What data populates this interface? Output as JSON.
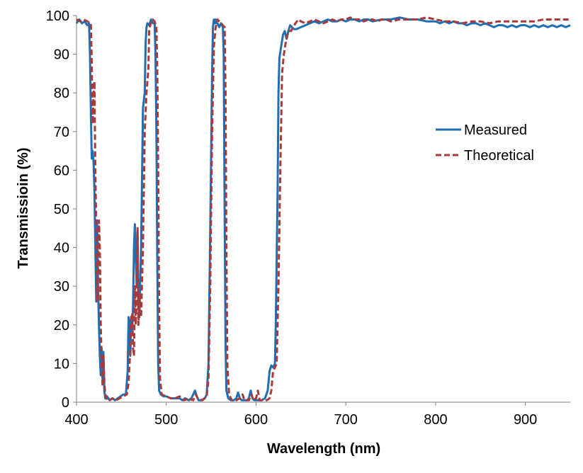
{
  "chart_data": {
    "type": "line",
    "title": "",
    "xlabel": "Wavelength (nm)",
    "ylabel": "Transmissioin (%)",
    "xlim": [
      400,
      950
    ],
    "ylim": [
      0,
      100
    ],
    "x_ticks": [
      400,
      500,
      600,
      700,
      800,
      900
    ],
    "y_ticks": [
      0,
      10,
      20,
      30,
      40,
      50,
      60,
      70,
      80,
      90,
      100
    ],
    "grid": false,
    "legend_position": "right",
    "series": [
      {
        "name": "Measured",
        "color": "#1f6fb5",
        "style": "solid",
        "points": [
          [
            400,
            98
          ],
          [
            403,
            99
          ],
          [
            406,
            98
          ],
          [
            409,
            98.5
          ],
          [
            412,
            97.5
          ],
          [
            414,
            98
          ],
          [
            415,
            90
          ],
          [
            416,
            75
          ],
          [
            417,
            63
          ],
          [
            418,
            65
          ],
          [
            419,
            62
          ],
          [
            420,
            55
          ],
          [
            421,
            40
          ],
          [
            422,
            26
          ],
          [
            423,
            47
          ],
          [
            424,
            30
          ],
          [
            425,
            20
          ],
          [
            426,
            12
          ],
          [
            427,
            7
          ],
          [
            428,
            14
          ],
          [
            429,
            6
          ],
          [
            430,
            13
          ],
          [
            431,
            3
          ],
          [
            432,
            1
          ],
          [
            434,
            1.5
          ],
          [
            437,
            0.5
          ],
          [
            440,
            1
          ],
          [
            443,
            0.5
          ],
          [
            446,
            1
          ],
          [
            449,
            1.5
          ],
          [
            452,
            2
          ],
          [
            455,
            2
          ],
          [
            457,
            8
          ],
          [
            458,
            22
          ],
          [
            459,
            20
          ],
          [
            460,
            12
          ],
          [
            461,
            22
          ],
          [
            462,
            18
          ],
          [
            463,
            25
          ],
          [
            464,
            40
          ],
          [
            465,
            46
          ],
          [
            466,
            38
          ],
          [
            467,
            30
          ],
          [
            468,
            44
          ],
          [
            469,
            25
          ],
          [
            470,
            22
          ],
          [
            472,
            40
          ],
          [
            474,
            76
          ],
          [
            476,
            80
          ],
          [
            477,
            93
          ],
          [
            478,
            97
          ],
          [
            479,
            98
          ],
          [
            481,
            97.5
          ],
          [
            483,
            99
          ],
          [
            485,
            98
          ],
          [
            487,
            98
          ],
          [
            488,
            90
          ],
          [
            489,
            70
          ],
          [
            490,
            35
          ],
          [
            491,
            10
          ],
          [
            492,
            3
          ],
          [
            494,
            2
          ],
          [
            497,
            1.5
          ],
          [
            500,
            1.5
          ],
          [
            505,
            1
          ],
          [
            510,
            1
          ],
          [
            515,
            1
          ],
          [
            518,
            0.5
          ],
          [
            521,
            1
          ],
          [
            525,
            0.5
          ],
          [
            528,
            1
          ],
          [
            530,
            2
          ],
          [
            532,
            3
          ],
          [
            534,
            1.5
          ],
          [
            536,
            0.5
          ],
          [
            540,
            0.5
          ],
          [
            543,
            1
          ],
          [
            545,
            2
          ],
          [
            547,
            10
          ],
          [
            549,
            45
          ],
          [
            551,
            85
          ],
          [
            552,
            97
          ],
          [
            553,
            99
          ],
          [
            554,
            98
          ],
          [
            555,
            99
          ],
          [
            556,
            98
          ],
          [
            557,
            98
          ],
          [
            559,
            97
          ],
          [
            561,
            98
          ],
          [
            563,
            97
          ],
          [
            564,
            90
          ],
          [
            565,
            50
          ],
          [
            566,
            15
          ],
          [
            567,
            3
          ],
          [
            569,
            1
          ],
          [
            572,
            0.5
          ],
          [
            575,
            0.5
          ],
          [
            578,
            1
          ],
          [
            580,
            2.5
          ],
          [
            582,
            1
          ],
          [
            584,
            0.5
          ],
          [
            587,
            0.5
          ],
          [
            590,
            0.5
          ],
          [
            592,
            1
          ],
          [
            594,
            3
          ],
          [
            596,
            1
          ],
          [
            598,
            0.5
          ],
          [
            602,
            0.5
          ],
          [
            606,
            0.5
          ],
          [
            610,
            1
          ],
          [
            613,
            3
          ],
          [
            615,
            8
          ],
          [
            617,
            9.5
          ],
          [
            619,
            9
          ],
          [
            621,
            10
          ],
          [
            622,
            20
          ],
          [
            624,
            55
          ],
          [
            625,
            80
          ],
          [
            626,
            89
          ],
          [
            628,
            92
          ],
          [
            630,
            95
          ],
          [
            632,
            96
          ],
          [
            634,
            94
          ],
          [
            636,
            96
          ],
          [
            638,
            97.5
          ],
          [
            640,
            97
          ],
          [
            642,
            96.5
          ],
          [
            645,
            96.5
          ],
          [
            650,
            97
          ],
          [
            655,
            97.5
          ],
          [
            660,
            98
          ],
          [
            665,
            98.5
          ],
          [
            670,
            98
          ],
          [
            675,
            98.5
          ],
          [
            680,
            99
          ],
          [
            685,
            98.5
          ],
          [
            690,
            98.5
          ],
          [
            695,
            99
          ],
          [
            700,
            98.5
          ],
          [
            705,
            99
          ],
          [
            710,
            99
          ],
          [
            715,
            98.5
          ],
          [
            720,
            99
          ],
          [
            725,
            99
          ],
          [
            730,
            98.5
          ],
          [
            740,
            99
          ],
          [
            750,
            99
          ],
          [
            760,
            99.5
          ],
          [
            770,
            99
          ],
          [
            780,
            99
          ],
          [
            790,
            98.5
          ],
          [
            800,
            98.5
          ],
          [
            805,
            98
          ],
          [
            810,
            98.5
          ],
          [
            815,
            98
          ],
          [
            820,
            98.5
          ],
          [
            825,
            98
          ],
          [
            830,
            98
          ],
          [
            835,
            97.5
          ],
          [
            840,
            98
          ],
          [
            845,
            98
          ],
          [
            850,
            97.5
          ],
          [
            855,
            98
          ],
          [
            860,
            97.5
          ],
          [
            865,
            97
          ],
          [
            870,
            97.5
          ],
          [
            875,
            97.5
          ],
          [
            880,
            97
          ],
          [
            885,
            97.5
          ],
          [
            890,
            97
          ],
          [
            895,
            97.5
          ],
          [
            900,
            97.5
          ],
          [
            905,
            97
          ],
          [
            910,
            97.5
          ],
          [
            915,
            97
          ],
          [
            920,
            97.5
          ],
          [
            925,
            97
          ],
          [
            930,
            97.5
          ],
          [
            935,
            97
          ],
          [
            940,
            97.5
          ],
          [
            945,
            97
          ],
          [
            950,
            97.5
          ]
        ]
      },
      {
        "name": "Theoretical",
        "color": "#a83a3a",
        "style": "dashed",
        "points": [
          [
            400,
            99
          ],
          [
            404,
            98.5
          ],
          [
            408,
            99
          ],
          [
            412,
            98.5
          ],
          [
            416,
            98
          ],
          [
            417,
            88
          ],
          [
            418,
            72
          ],
          [
            419,
            80
          ],
          [
            420,
            83
          ],
          [
            421,
            60
          ],
          [
            422,
            45
          ],
          [
            423,
            26
          ],
          [
            424,
            33
          ],
          [
            425,
            47
          ],
          [
            426,
            40
          ],
          [
            427,
            20
          ],
          [
            428,
            10
          ],
          [
            429,
            4
          ],
          [
            430,
            12
          ],
          [
            431,
            5
          ],
          [
            432,
            2
          ],
          [
            434,
            0.5
          ],
          [
            437,
            0.5
          ],
          [
            440,
            1
          ],
          [
            444,
            0.5
          ],
          [
            448,
            1
          ],
          [
            452,
            1.5
          ],
          [
            456,
            2
          ],
          [
            458,
            5
          ],
          [
            460,
            14
          ],
          [
            461,
            22
          ],
          [
            462,
            23
          ],
          [
            463,
            14
          ],
          [
            464,
            12
          ],
          [
            465,
            30
          ],
          [
            466,
            20
          ],
          [
            467,
            26
          ],
          [
            468,
            45
          ],
          [
            469,
            20
          ],
          [
            470,
            28
          ],
          [
            472,
            22
          ],
          [
            474,
            40
          ],
          [
            476,
            70
          ],
          [
            478,
            80
          ],
          [
            480,
            86
          ],
          [
            481,
            96
          ],
          [
            483,
            98.5
          ],
          [
            485,
            99
          ],
          [
            487,
            98.5
          ],
          [
            489,
            97
          ],
          [
            490,
            85
          ],
          [
            491,
            60
          ],
          [
            492,
            25
          ],
          [
            493,
            6
          ],
          [
            495,
            2
          ],
          [
            500,
            1.5
          ],
          [
            505,
            1
          ],
          [
            510,
            1
          ],
          [
            515,
            1.5
          ],
          [
            520,
            0.5
          ],
          [
            525,
            1
          ],
          [
            530,
            0.5
          ],
          [
            533,
            2
          ],
          [
            535,
            1
          ],
          [
            540,
            0.5
          ],
          [
            545,
            1.5
          ],
          [
            547,
            6
          ],
          [
            549,
            30
          ],
          [
            551,
            70
          ],
          [
            553,
            92
          ],
          [
            555,
            97
          ],
          [
            557,
            99
          ],
          [
            559,
            98.5
          ],
          [
            561,
            98
          ],
          [
            563,
            97.5
          ],
          [
            565,
            97
          ],
          [
            566,
            80
          ],
          [
            567,
            40
          ],
          [
            568,
            10
          ],
          [
            570,
            2
          ],
          [
            573,
            0.5
          ],
          [
            578,
            0.5
          ],
          [
            582,
            1
          ],
          [
            585,
            2
          ],
          [
            587,
            0.5
          ],
          [
            592,
            0.5
          ],
          [
            595,
            2
          ],
          [
            597,
            0.5
          ],
          [
            600,
            1
          ],
          [
            602,
            3
          ],
          [
            604,
            0.5
          ],
          [
            608,
            0.5
          ],
          [
            612,
            0.5
          ],
          [
            615,
            1
          ],
          [
            617,
            3
          ],
          [
            619,
            8
          ],
          [
            621,
            9
          ],
          [
            623,
            10
          ],
          [
            625,
            30
          ],
          [
            627,
            60
          ],
          [
            629,
            85
          ],
          [
            631,
            90
          ],
          [
            633,
            93
          ],
          [
            635,
            95
          ],
          [
            637,
            96
          ],
          [
            639,
            96
          ],
          [
            641,
            97
          ],
          [
            644,
            98
          ],
          [
            647,
            99
          ],
          [
            650,
            98.5
          ],
          [
            655,
            98
          ],
          [
            660,
            98.5
          ],
          [
            665,
            99
          ],
          [
            670,
            98.5
          ],
          [
            675,
            98
          ],
          [
            680,
            98.5
          ],
          [
            685,
            99
          ],
          [
            690,
            98.5
          ],
          [
            695,
            99
          ],
          [
            700,
            99
          ],
          [
            705,
            99.5
          ],
          [
            710,
            99
          ],
          [
            715,
            99
          ],
          [
            720,
            98.5
          ],
          [
            725,
            99
          ],
          [
            730,
            99
          ],
          [
            735,
            98.5
          ],
          [
            740,
            99
          ],
          [
            745,
            99
          ],
          [
            750,
            98.5
          ],
          [
            760,
            99
          ],
          [
            770,
            99
          ],
          [
            780,
            99
          ],
          [
            790,
            99.5
          ],
          [
            800,
            99
          ],
          [
            810,
            98.5
          ],
          [
            820,
            98.5
          ],
          [
            830,
            98
          ],
          [
            840,
            98.5
          ],
          [
            850,
            98.5
          ],
          [
            860,
            98
          ],
          [
            870,
            98.5
          ],
          [
            880,
            98.5
          ],
          [
            890,
            98.5
          ],
          [
            900,
            98.5
          ],
          [
            910,
            98.5
          ],
          [
            920,
            99
          ],
          [
            930,
            99
          ],
          [
            940,
            99
          ],
          [
            950,
            99
          ]
        ]
      }
    ]
  }
}
